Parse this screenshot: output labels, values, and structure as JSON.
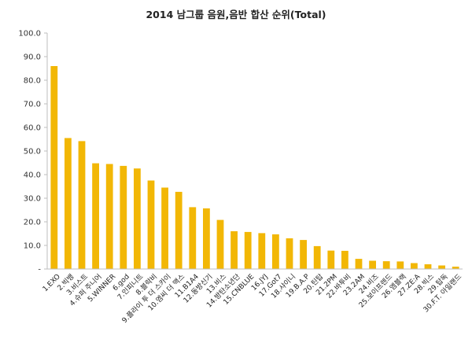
{
  "chart_data": {
    "type": "bar",
    "title": "2014 남그룹 음원,음반 합산 순위(Total)",
    "xlabel": "",
    "ylabel": "",
    "ylim": [
      0,
      100
    ],
    "ytick_labels": [
      "-",
      "10.0",
      "20.0",
      "30.0",
      "40.0",
      "50.0",
      "60.0",
      "70.0",
      "80.0",
      "90.0",
      "100.0"
    ],
    "grid": false,
    "legend": "none",
    "bar_color": "#F2B705",
    "categories": [
      "1.EXO",
      "2.빅뱅",
      "3.비스트",
      "4.슈퍼 주니어",
      "5.WINNER",
      "6.god",
      "7.인피니트",
      "8.블락비",
      "9.플라이 투 더 스카이",
      "10.엠씨 더 맥스",
      "11.B1A4",
      "12.동방신기",
      "13.비스",
      "14.방탄소년단",
      "15.CNBLUE",
      "16.JYJ",
      "17.Got7",
      "18.샤이니",
      "19.B.A.P",
      "20.틴탑",
      "21.2PM",
      "22.바투비",
      "23.2AM",
      "24.비즈",
      "25.보이프렌드",
      "26.엠블랙",
      "27.ZE:A",
      "28.빅스",
      "29.탑독",
      "30.F.T. 아일랜드"
    ],
    "values": [
      86.0,
      55.5,
      54.2,
      44.8,
      44.5,
      43.7,
      42.6,
      37.5,
      34.5,
      32.7,
      26.2,
      25.7,
      20.8,
      16.0,
      15.7,
      15.2,
      14.7,
      13.0,
      12.3,
      9.7,
      7.8,
      7.7,
      4.3,
      3.5,
      3.3,
      3.2,
      2.5,
      2.0,
      1.5,
      1.0
    ]
  }
}
